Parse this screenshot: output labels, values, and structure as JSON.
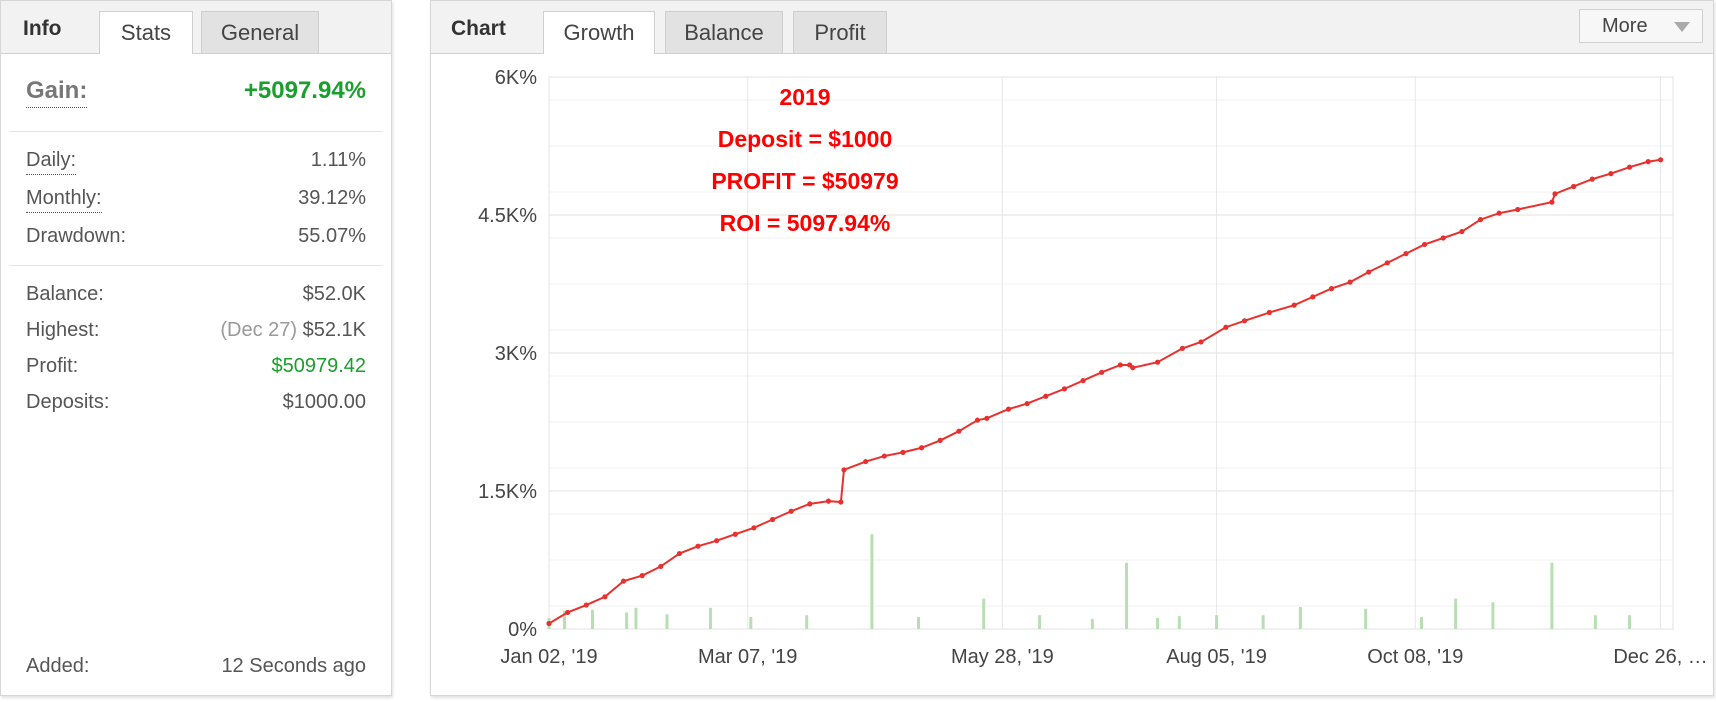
{
  "info_panel": {
    "title": "Info",
    "tabs": [
      {
        "label": "Stats",
        "active": true
      },
      {
        "label": "General",
        "active": false
      }
    ],
    "gain": {
      "label": "Gain:",
      "value": "+5097.94%"
    },
    "stats": [
      {
        "label": "Daily:",
        "value": "1.11%"
      },
      {
        "label": "Monthly:",
        "value": "39.12%"
      },
      {
        "label": "Drawdown:",
        "value": "55.07%"
      }
    ],
    "balance": {
      "label": "Balance:",
      "value": "$52.0K"
    },
    "highest": {
      "label": "Highest:",
      "date": "(Dec 27)",
      "value": "$52.1K"
    },
    "profit": {
      "label": "Profit:",
      "value": "$50979.42"
    },
    "deposits": {
      "label": "Deposits:",
      "value": "$1000.00"
    },
    "added": {
      "label": "Added:",
      "value": "12 Seconds ago"
    }
  },
  "chart_panel": {
    "title": "Chart",
    "tabs": [
      {
        "label": "Growth",
        "active": true
      },
      {
        "label": "Balance",
        "active": false
      },
      {
        "label": "Profit",
        "active": false
      }
    ],
    "more_label": "More",
    "colors": {
      "line": "#e8312f",
      "bars": "#b8deb4",
      "annotation": "#ff0000",
      "gain": "#1a9e2e"
    }
  },
  "chart_data": {
    "type": "line",
    "annotations": [
      "2019",
      "Deposit = $1000",
      "PROFIT = $50979",
      "ROI = 5097.94%"
    ],
    "y_ticks": [
      "6K%",
      "4.5K%",
      "3K%",
      "1.5K%",
      "0%"
    ],
    "y_tick_values": [
      6000,
      4500,
      3000,
      1500,
      0
    ],
    "ylim": [
      0,
      6000
    ],
    "x_tick_labels": [
      "Jan 02, '19",
      "Mar 07, '19",
      "May 28, '19",
      "Aug 05, '19",
      "Oct 08, '19",
      "Dec 26, …"
    ],
    "x_tick_days": [
      0,
      64,
      146,
      215,
      279,
      358
    ],
    "xlim": [
      0,
      362
    ],
    "grid": true,
    "series": [
      {
        "type": "line",
        "x": [
          0,
          6,
          12,
          18,
          24,
          30,
          36,
          42,
          48,
          54,
          60,
          66,
          72,
          78,
          84,
          90,
          94,
          95,
          102,
          108,
          114,
          120,
          126,
          132,
          138,
          141,
          148,
          154,
          160,
          166,
          172,
          178,
          184,
          187,
          188,
          196,
          204,
          210,
          218,
          224,
          232,
          240,
          246,
          252,
          258,
          264,
          270,
          276,
          282,
          288,
          294,
          300,
          306,
          312,
          323,
          324,
          330,
          336,
          342,
          348,
          354,
          358
        ],
        "y": [
          60,
          180,
          260,
          350,
          520,
          580,
          680,
          820,
          900,
          960,
          1030,
          1100,
          1190,
          1280,
          1360,
          1390,
          1380,
          1730,
          1820,
          1880,
          1920,
          1970,
          2050,
          2150,
          2270,
          2290,
          2390,
          2450,
          2530,
          2610,
          2700,
          2790,
          2870,
          2870,
          2840,
          2900,
          3050,
          3120,
          3280,
          3350,
          3440,
          3520,
          3610,
          3700,
          3770,
          3880,
          3980,
          4080,
          4180,
          4250,
          4320,
          4450,
          4520,
          4560,
          4640,
          4730,
          4810,
          4890,
          4950,
          5020,
          5080,
          5100
        ]
      },
      {
        "type": "bar",
        "x": [
          0,
          5,
          14,
          25,
          28,
          38,
          52,
          65,
          83,
          104,
          119,
          140,
          158,
          175,
          186,
          196,
          203,
          215,
          230,
          242,
          263,
          281,
          292,
          304,
          323,
          337,
          348
        ],
        "y": [
          120,
          200,
          210,
          180,
          230,
          160,
          230,
          130,
          150,
          1030,
          130,
          330,
          150,
          110,
          720,
          120,
          140,
          150,
          150,
          240,
          220,
          130,
          330,
          290,
          720,
          150,
          150
        ]
      }
    ]
  }
}
